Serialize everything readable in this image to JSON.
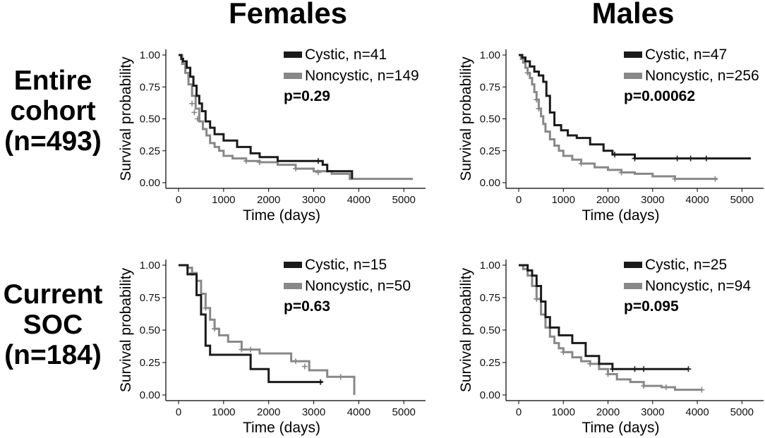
{
  "figure": {
    "column_titles": [
      "Females",
      "Males"
    ],
    "row_titles": [
      [
        "Entire",
        "cohort",
        "(n=493)"
      ],
      [
        "Current",
        "SOC",
        "(n=184)"
      ]
    ]
  },
  "colors": {
    "cystic": "#1a1a1a",
    "noncystic": "#888888",
    "axis": "#000000"
  },
  "chart_data": [
    {
      "type": "line",
      "subtype": "kaplan-meier",
      "panel": "Females / Entire cohort",
      "xlabel": "Time (days)",
      "ylabel": "Survival probability",
      "xlim": [
        0,
        5200
      ],
      "ylim": [
        0,
        1
      ],
      "xticks": [
        0,
        1000,
        2000,
        3000,
        4000,
        5000
      ],
      "yticks": [
        0,
        0.25,
        0.5,
        0.75,
        1
      ],
      "ytick_labels": [
        "0.00",
        "0.25",
        "0.50",
        "0.75",
        "1.00"
      ],
      "p_value": "p=0.29",
      "series": [
        {
          "name": "Cystic, n=41",
          "color_key": "cystic",
          "x": [
            0,
            60,
            100,
            180,
            260,
            330,
            400,
            460,
            520,
            600,
            700,
            800,
            1000,
            1300,
            1600,
            1800,
            2200,
            3200,
            3300,
            3850
          ],
          "y": [
            1.0,
            0.97,
            0.95,
            0.9,
            0.83,
            0.76,
            0.68,
            0.62,
            0.56,
            0.48,
            0.43,
            0.38,
            0.33,
            0.28,
            0.23,
            0.2,
            0.17,
            0.14,
            0.09,
            0.03
          ],
          "censored": [
            [
              3100,
              0.17
            ]
          ]
        },
        {
          "name": "Noncystic, n=149",
          "color_key": "noncystic",
          "x": [
            0,
            80,
            150,
            220,
            300,
            380,
            460,
            540,
            620,
            700,
            800,
            900,
            1000,
            1200,
            1500,
            1800,
            2200,
            2600,
            3000,
            3400,
            3800,
            5200
          ],
          "y": [
            1.0,
            0.93,
            0.86,
            0.77,
            0.68,
            0.58,
            0.48,
            0.42,
            0.37,
            0.31,
            0.28,
            0.25,
            0.21,
            0.19,
            0.17,
            0.16,
            0.14,
            0.11,
            0.09,
            0.07,
            0.03,
            0.03
          ],
          "censored": [
            [
              300,
              0.62
            ],
            [
              350,
              0.55
            ],
            [
              420,
              0.5
            ],
            [
              1500,
              0.17
            ],
            [
              1800,
              0.16
            ],
            [
              2600,
              0.11
            ],
            [
              3100,
              0.08
            ]
          ]
        }
      ]
    },
    {
      "type": "line",
      "subtype": "kaplan-meier",
      "panel": "Males / Entire cohort",
      "xlabel": "Time (days)",
      "ylabel": "Survival probability",
      "xlim": [
        0,
        5200
      ],
      "ylim": [
        0,
        1
      ],
      "xticks": [
        0,
        1000,
        2000,
        3000,
        4000,
        5000
      ],
      "yticks": [
        0,
        0.25,
        0.5,
        0.75,
        1
      ],
      "ytick_labels": [
        "0.00",
        "0.25",
        "0.50",
        "0.75",
        "1.00"
      ],
      "p_value": "p=0.00062",
      "series": [
        {
          "name": "Cystic, n=47",
          "color_key": "cystic",
          "x": [
            0,
            80,
            150,
            250,
            350,
            450,
            550,
            620,
            700,
            800,
            950,
            1100,
            1300,
            1600,
            1900,
            2100,
            2600,
            5200
          ],
          "y": [
            1.0,
            0.98,
            0.95,
            0.91,
            0.87,
            0.84,
            0.79,
            0.68,
            0.55,
            0.45,
            0.41,
            0.37,
            0.35,
            0.3,
            0.25,
            0.22,
            0.19,
            0.19
          ],
          "censored": [
            [
              2150,
              0.22
            ],
            [
              2600,
              0.19
            ],
            [
              3550,
              0.19
            ],
            [
              3850,
              0.19
            ],
            [
              4200,
              0.19
            ]
          ]
        },
        {
          "name": "Noncystic, n=256",
          "color_key": "noncystic",
          "x": [
            0,
            50,
            100,
            150,
            200,
            250,
            300,
            350,
            400,
            450,
            500,
            550,
            600,
            700,
            800,
            900,
            1000,
            1200,
            1400,
            1700,
            2000,
            2300,
            2600,
            3000,
            3500,
            4450
          ],
          "y": [
            1.0,
            0.97,
            0.94,
            0.9,
            0.86,
            0.82,
            0.77,
            0.71,
            0.65,
            0.58,
            0.52,
            0.46,
            0.4,
            0.34,
            0.29,
            0.25,
            0.21,
            0.18,
            0.15,
            0.12,
            0.1,
            0.08,
            0.07,
            0.05,
            0.03,
            0.03
          ],
          "censored": [
            [
              200,
              0.86
            ],
            [
              400,
              0.65
            ],
            [
              450,
              0.58
            ],
            [
              1400,
              0.15
            ],
            [
              2300,
              0.08
            ],
            [
              3500,
              0.03
            ],
            [
              4400,
              0.03
            ]
          ]
        }
      ]
    },
    {
      "type": "line",
      "subtype": "kaplan-meier",
      "panel": "Females / Current SOC",
      "xlabel": "Time (days)",
      "ylabel": "Survival probability",
      "xlim": [
        0,
        5200
      ],
      "ylim": [
        0,
        1
      ],
      "xticks": [
        0,
        1000,
        2000,
        3000,
        4000,
        5000
      ],
      "yticks": [
        0,
        0.25,
        0.5,
        0.75,
        1
      ],
      "ytick_labels": [
        "0.00",
        "0.25",
        "0.50",
        "0.75",
        "1.00"
      ],
      "p_value": "p=0.63",
      "series": [
        {
          "name": "Cystic, n=15",
          "color_key": "cystic",
          "x": [
            0,
            200,
            400,
            500,
            600,
            700,
            1000,
            1600,
            2000,
            3200
          ],
          "y": [
            1.0,
            0.93,
            0.77,
            0.62,
            0.38,
            0.31,
            0.31,
            0.2,
            0.1,
            0.1
          ],
          "censored": [
            [
              3150,
              0.1
            ]
          ]
        },
        {
          "name": "Noncystic, n=50",
          "color_key": "noncystic",
          "x": [
            0,
            200,
            300,
            400,
            500,
            600,
            700,
            800,
            900,
            1100,
            1400,
            1800,
            2500,
            2900,
            3300,
            3850,
            3900
          ],
          "y": [
            1.0,
            0.98,
            0.94,
            0.88,
            0.78,
            0.67,
            0.58,
            0.51,
            0.46,
            0.41,
            0.35,
            0.32,
            0.26,
            0.19,
            0.14,
            0.14,
            0.0
          ],
          "censored": [
            [
              300,
              0.94
            ],
            [
              600,
              0.67
            ],
            [
              800,
              0.51
            ],
            [
              1400,
              0.35
            ],
            [
              1600,
              0.35
            ],
            [
              2600,
              0.26
            ],
            [
              2800,
              0.22
            ],
            [
              3600,
              0.14
            ]
          ]
        }
      ]
    },
    {
      "type": "line",
      "subtype": "kaplan-meier",
      "panel": "Males / Current SOC",
      "xlabel": "Time (days)",
      "ylabel": "Survival probability",
      "xlim": [
        0,
        5200
      ],
      "ylim": [
        0,
        1
      ],
      "xticks": [
        0,
        1000,
        2000,
        3000,
        4000,
        5000
      ],
      "yticks": [
        0,
        0.25,
        0.5,
        0.75,
        1
      ],
      "ytick_labels": [
        "0.00",
        "0.25",
        "0.50",
        "0.75",
        "1.00"
      ],
      "p_value": "p=0.095",
      "series": [
        {
          "name": "Cystic, n=25",
          "color_key": "cystic",
          "x": [
            0,
            200,
            300,
            400,
            500,
            600,
            700,
            900,
            1200,
            1500,
            1800,
            2100,
            3800
          ],
          "y": [
            1.0,
            0.96,
            0.92,
            0.84,
            0.72,
            0.6,
            0.52,
            0.46,
            0.4,
            0.3,
            0.24,
            0.2,
            0.2
          ],
          "censored": [
            [
              2100,
              0.2
            ],
            [
              2600,
              0.2
            ],
            [
              2800,
              0.2
            ],
            [
              3800,
              0.2
            ]
          ]
        },
        {
          "name": "Noncystic, n=94",
          "color_key": "noncystic",
          "x": [
            0,
            100,
            200,
            300,
            400,
            500,
            600,
            700,
            800,
            900,
            1000,
            1200,
            1400,
            1600,
            1800,
            2000,
            2200,
            2500,
            2800,
            3200,
            3500,
            4100
          ],
          "y": [
            1.0,
            0.97,
            0.92,
            0.84,
            0.74,
            0.62,
            0.52,
            0.45,
            0.4,
            0.36,
            0.33,
            0.29,
            0.26,
            0.24,
            0.2,
            0.16,
            0.12,
            0.1,
            0.07,
            0.06,
            0.04,
            0.04
          ],
          "censored": [
            [
              400,
              0.74
            ],
            [
              1000,
              0.33
            ],
            [
              1600,
              0.24
            ],
            [
              2000,
              0.16
            ],
            [
              2800,
              0.07
            ],
            [
              3300,
              0.06
            ],
            [
              4100,
              0.04
            ]
          ]
        }
      ]
    }
  ]
}
